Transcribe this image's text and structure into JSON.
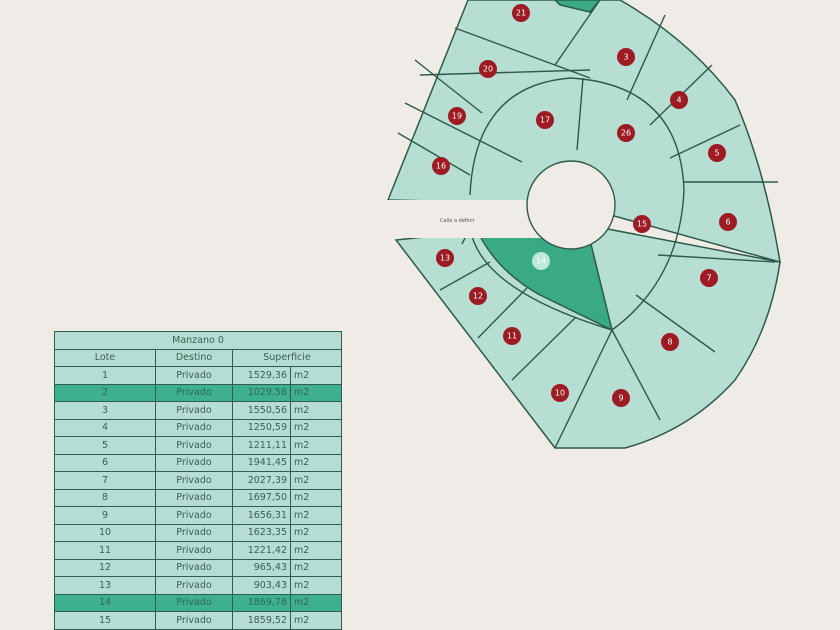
{
  "plan": {
    "street_label": "Calle a definir",
    "markers": [
      {
        "label": "21"
      },
      {
        "label": "20"
      },
      {
        "label": "19"
      },
      {
        "label": "16"
      },
      {
        "label": "17"
      },
      {
        "label": "3"
      },
      {
        "label": "4"
      },
      {
        "label": "26"
      },
      {
        "label": "5"
      },
      {
        "label": "6"
      },
      {
        "label": "7"
      },
      {
        "label": "8"
      },
      {
        "label": "9"
      },
      {
        "label": "10"
      },
      {
        "label": "11"
      },
      {
        "label": "12"
      },
      {
        "label": "13"
      },
      {
        "label": "14"
      },
      {
        "label": "15"
      }
    ],
    "colors": {
      "lot": "#b7ded3",
      "highlight": "#3aaa86",
      "border": "#2d5a48",
      "marker": "#9e1b24",
      "background": "#efebe7"
    }
  },
  "table": {
    "title": "Manzano 0",
    "headers": [
      "Lote",
      "Destino",
      "Superficie"
    ],
    "unit": "m2",
    "rows": [
      {
        "lote": "1",
        "destino": "Privado",
        "superficie": "1529,36"
      },
      {
        "lote": "2",
        "destino": "Privado",
        "superficie": "1029,56",
        "highlight": true
      },
      {
        "lote": "3",
        "destino": "Privado",
        "superficie": "1550,56"
      },
      {
        "lote": "4",
        "destino": "Privado",
        "superficie": "1250,59"
      },
      {
        "lote": "5",
        "destino": "Privado",
        "superficie": "1211,11"
      },
      {
        "lote": "6",
        "destino": "Privado",
        "superficie": "1941,45"
      },
      {
        "lote": "7",
        "destino": "Privado",
        "superficie": "2027,39"
      },
      {
        "lote": "8",
        "destino": "Privado",
        "superficie": "1697,50"
      },
      {
        "lote": "9",
        "destino": "Privado",
        "superficie": "1656,31"
      },
      {
        "lote": "10",
        "destino": "Privado",
        "superficie": "1623,35"
      },
      {
        "lote": "11",
        "destino": "Privado",
        "superficie": "1221,42"
      },
      {
        "lote": "12",
        "destino": "Privado",
        "superficie": "965,43"
      },
      {
        "lote": "13",
        "destino": "Privado",
        "superficie": "903,43"
      },
      {
        "lote": "14",
        "destino": "Privado",
        "superficie": "1869,78",
        "highlight": true
      },
      {
        "lote": "15",
        "destino": "Privado",
        "superficie": "1859,52"
      }
    ]
  }
}
